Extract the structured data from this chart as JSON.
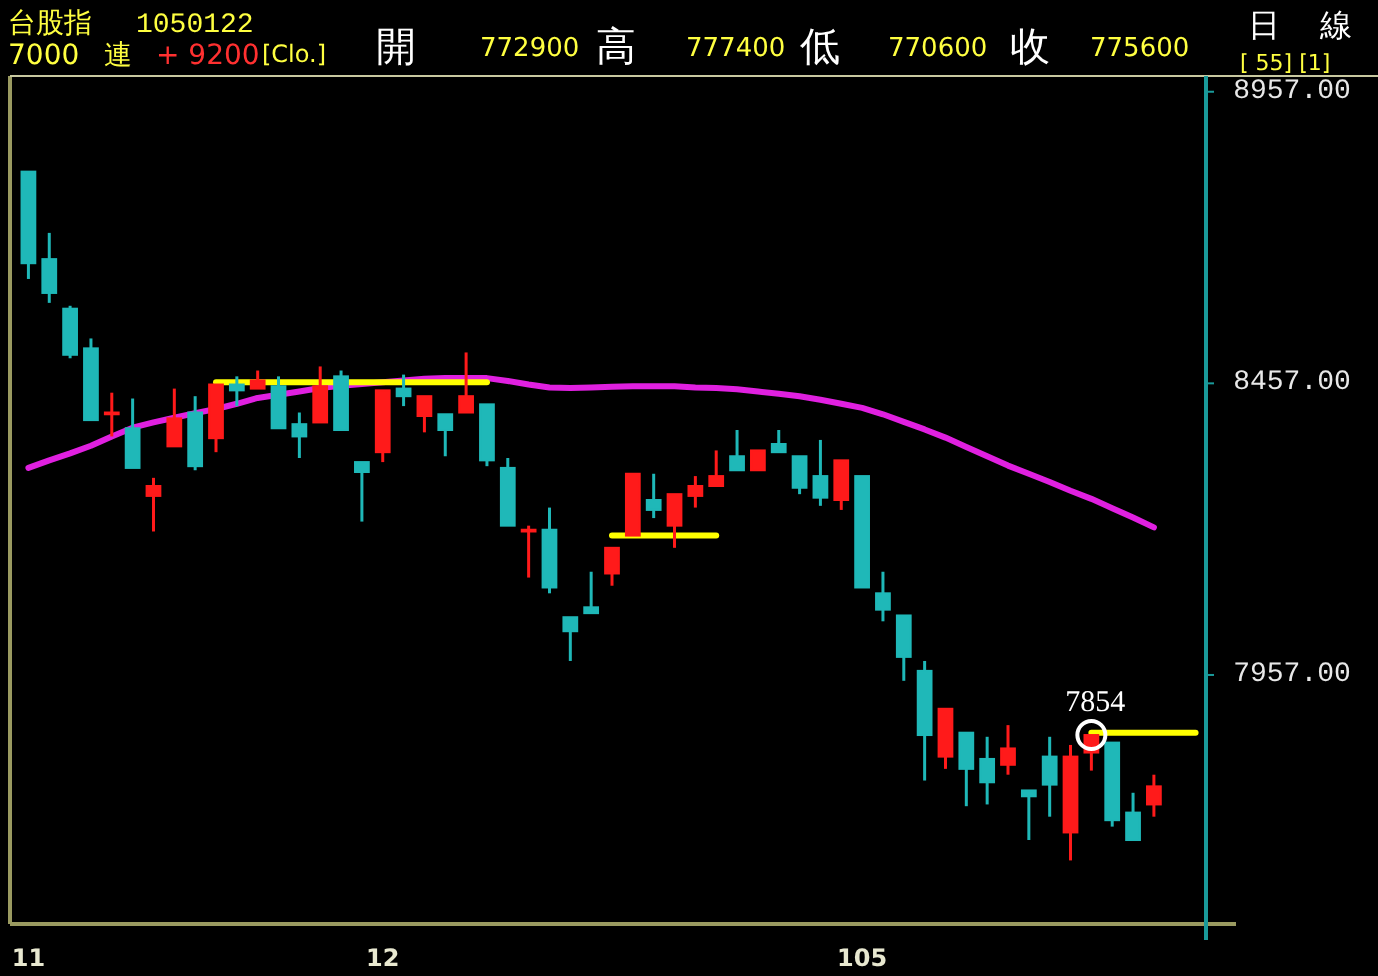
{
  "chart_data": {
    "type": "candlestick",
    "title": "台股指",
    "subtitle": "1050122",
    "annotations": [
      "7000",
      "連",
      "+ 9200",
      "[Clo.]",
      "開",
      "772900",
      "高",
      "777400",
      "低",
      "770600",
      "收",
      "775600",
      "日",
      "線",
      "[ 55] [1]",
      {
        "text": "7854",
        "y": 7854
      }
    ],
    "categories": [
      "11",
      null,
      null,
      null,
      null,
      null,
      null,
      null,
      null,
      null,
      null,
      null,
      null,
      null,
      null,
      null,
      null,
      "12",
      null,
      null,
      null,
      null,
      null,
      null,
      null,
      null,
      null,
      null,
      null,
      null,
      null,
      null,
      null,
      null,
      null,
      null,
      null,
      null,
      null,
      null,
      "105",
      null,
      null,
      null,
      null,
      null,
      null,
      null,
      null,
      null,
      null,
      null,
      null,
      null,
      null,
      null,
      null
    ],
    "ohlc": [
      [
        8820,
        8820,
        8636,
        8663
      ],
      [
        8670,
        8715,
        8595,
        8612
      ],
      [
        8585,
        8590,
        8500,
        8506
      ],
      [
        8517,
        8534,
        8394,
        8394
      ],
      [
        8404,
        8441,
        8366,
        8407
      ],
      [
        8380,
        8431,
        8312,
        8312
      ],
      [
        8264,
        8295,
        8203,
        8281
      ],
      [
        8349,
        8448,
        8349,
        8397
      ],
      [
        8407,
        8435,
        8308,
        8315
      ],
      [
        8363,
        8455,
        8339,
        8455
      ],
      [
        8455,
        8469,
        8418,
        8445
      ],
      [
        8448,
        8479,
        8448,
        8462
      ],
      [
        8452,
        8469,
        8380,
        8380
      ],
      [
        8387,
        8407,
        8329,
        8366
      ],
      [
        8390,
        8486,
        8390,
        8452
      ],
      [
        8469,
        8479,
        8377,
        8377
      ],
      [
        8322,
        8322,
        8220,
        8305
      ],
      [
        8339,
        8445,
        8322,
        8445
      ],
      [
        8448,
        8472,
        8418,
        8435
      ],
      [
        8401,
        8435,
        8373,
        8435
      ],
      [
        8404,
        8404,
        8332,
        8377
      ],
      [
        8407,
        8510,
        8407,
        8435
      ],
      [
        8421,
        8421,
        8315,
        8325
      ],
      [
        8312,
        8329,
        8213,
        8213
      ],
      [
        8203,
        8213,
        8124,
        8206
      ],
      [
        8206,
        8244,
        8097,
        8107
      ],
      [
        8056,
        8056,
        7981,
        8032
      ],
      [
        8073,
        8134,
        8063,
        8063
      ],
      [
        8131,
        8175,
        8110,
        8175
      ],
      [
        8196,
        8302,
        8196,
        8302
      ],
      [
        8257,
        8302,
        8226,
        8240
      ],
      [
        8213,
        8267,
        8175,
        8267
      ],
      [
        8264,
        8298,
        8244,
        8281
      ],
      [
        8281,
        8342,
        8281,
        8298
      ],
      [
        8332,
        8377,
        8308,
        8308
      ],
      [
        8308,
        8342,
        8308,
        8342
      ],
      [
        8353,
        8377,
        8339,
        8339
      ],
      [
        8332,
        8332,
        8267,
        8278
      ],
      [
        8298,
        8360,
        8247,
        8261
      ],
      [
        8257,
        8325,
        8240,
        8325
      ],
      [
        8298,
        8298,
        8107,
        8107
      ],
      [
        8097,
        8134,
        8049,
        8069
      ],
      [
        8059,
        8059,
        7947,
        7988
      ],
      [
        7964,
        7981,
        7776,
        7854
      ],
      [
        7817,
        7899,
        7796,
        7899
      ],
      [
        7858,
        7858,
        7732,
        7796
      ],
      [
        7813,
        7851,
        7735,
        7773
      ],
      [
        7803,
        7871,
        7786,
        7831
      ],
      [
        7759,
        7759,
        7674,
        7749
      ],
      [
        7817,
        7851,
        7714,
        7769
      ],
      [
        7687,
        7837,
        7639,
        7817
      ],
      [
        7824,
        7854,
        7793,
        7854
      ],
      [
        7841,
        7841,
        7697,
        7708
      ],
      [
        7721,
        7755,
        7674,
        7674
      ],
      [
        7735,
        7786,
        7714,
        7766
      ],
      null,
      null
    ],
    "colors": [
      "#1fb8b8",
      "#1fb8b8",
      "#1fb8b8",
      "#1fb8b8",
      "#ff1a1a",
      "#1fb8b8",
      "#ff1a1a",
      "#ff1a1a",
      "#1fb8b8",
      "#ff1a1a",
      "#1fb8b8",
      "#ff1a1a",
      "#1fb8b8",
      "#1fb8b8",
      "#ff1a1a",
      "#1fb8b8",
      "#1fb8b8",
      "#ff1a1a",
      "#1fb8b8",
      "#ff1a1a",
      "#1fb8b8",
      "#ff1a1a",
      "#1fb8b8",
      "#1fb8b8",
      "#ff1a1a",
      "#1fb8b8",
      "#1fb8b8",
      "#1fb8b8",
      "#ff1a1a",
      "#ff1a1a",
      "#1fb8b8",
      "#ff1a1a",
      "#ff1a1a",
      "#ff1a1a",
      "#1fb8b8",
      "#ff1a1a",
      "#1fb8b8",
      "#1fb8b8",
      "#1fb8b8",
      "#ff1a1a",
      "#1fb8b8",
      "#1fb8b8",
      "#1fb8b8",
      "#1fb8b8",
      "#ff1a1a",
      "#1fb8b8",
      "#1fb8b8",
      "#ff1a1a",
      "#1fb8b8",
      "#1fb8b8",
      "#ff1a1a",
      "#ff1a1a",
      "#1fb8b8",
      "#1fb8b8",
      "#ff1a1a",
      null,
      null
    ],
    "series": [
      {
        "type": "line",
        "color": "#e020e0",
        "values": [
          8312,
          8325,
          8337,
          8350,
          8366,
          8381,
          8390,
          8398,
          8406,
          8413,
          8422,
          8432,
          null,
          8443,
          8449,
          8453,
          8456,
          8459,
          8462,
          8465,
          8466,
          8466,
          8466,
          8461,
          8455,
          8450,
          8449,
          8450,
          8451,
          8452,
          8452,
          8452,
          8450,
          8449,
          8447,
          8443,
          8439,
          8435,
          8429,
          8422,
          8415,
          8404,
          8391,
          8378,
          8364,
          8348,
          8332,
          8316,
          8302,
          8288,
          8273,
          8259,
          8243,
          8227,
          8210,
          null,
          null
        ]
      },
      {
        "type": "line",
        "color": "#ffff00",
        "values": [
          null,
          null,
          null,
          null,
          null,
          null,
          null,
          null,
          null,
          8459,
          null,
          null,
          null,
          null,
          null,
          null,
          null,
          null,
          null,
          null,
          null,
          null,
          8459,
          null,
          null,
          null,
          null,
          null,
          null,
          null,
          null,
          null,
          null,
          null,
          null,
          null,
          null,
          null,
          null,
          null,
          null,
          null,
          null,
          null,
          null,
          null,
          null,
          null,
          null,
          null,
          null,
          null,
          null,
          null,
          null,
          null,
          null
        ]
      },
      {
        "type": "line",
        "color": "#ffff00",
        "values": [
          null,
          null,
          null,
          null,
          null,
          null,
          null,
          null,
          null,
          null,
          null,
          null,
          null,
          null,
          null,
          null,
          null,
          null,
          null,
          null,
          null,
          null,
          null,
          null,
          null,
          null,
          null,
          null,
          8196,
          null,
          null,
          null,
          null,
          8196,
          null,
          null,
          null,
          null,
          null,
          null,
          null,
          null,
          null,
          null,
          null,
          null,
          null,
          null,
          null,
          null,
          null,
          null,
          null,
          null,
          null,
          null,
          null
        ]
      },
      {
        "type": "line",
        "color": "#ffff00",
        "values": [
          null,
          null,
          null,
          null,
          null,
          null,
          null,
          null,
          null,
          null,
          null,
          null,
          null,
          null,
          null,
          null,
          null,
          null,
          null,
          null,
          null,
          null,
          null,
          null,
          null,
          null,
          null,
          null,
          null,
          null,
          null,
          null,
          null,
          null,
          null,
          null,
          null,
          null,
          null,
          null,
          null,
          null,
          null,
          null,
          null,
          null,
          null,
          null,
          null,
          null,
          null,
          7858,
          null,
          null,
          null,
          null,
          7858
        ]
      }
    ],
    "ylim": [
      7530,
      8984
    ],
    "yticks": [
      {
        "value": 7957,
        "label": "7957.00"
      },
      {
        "value": 8457,
        "label": "8457.00"
      },
      {
        "value": 8957,
        "label": "8957.00"
      }
    ],
    "grid": false
  }
}
